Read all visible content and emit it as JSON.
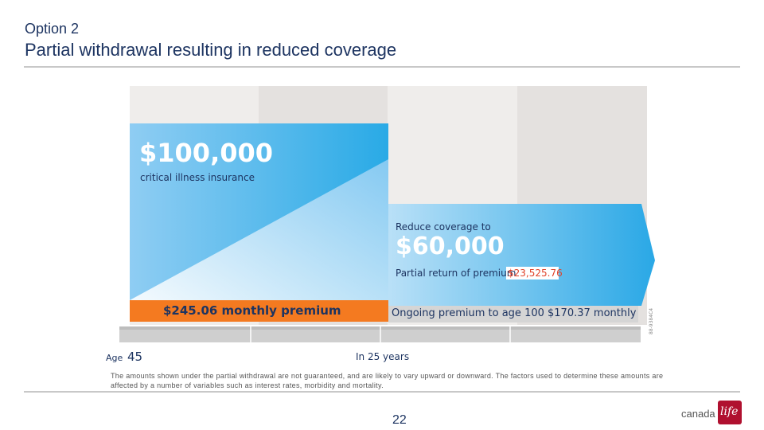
{
  "header": {
    "kicker": "Option 2",
    "title": "Partial withdrawal resulting in reduced coverage"
  },
  "diagram": {
    "initial_amount": "$100,000",
    "initial_label": "critical illness insurance",
    "initial_premium": "$245.06 monthly premium",
    "reduce_label": "Reduce coverage to",
    "reduced_amount": "$60,000",
    "partial_return_label": "Partial return of premium",
    "partial_return_value": "$23,525.76",
    "ongoing_premium": "Ongoing premium to age 100 $170.37 monthly",
    "age_label": "Age",
    "age_value": "45",
    "later_label": "In 25 years",
    "side_code": "88-9384C4"
  },
  "footer": {
    "disclaimer": "The amounts shown under the partial withdrawal are not guaranteed, and are likely to vary upward or downward.  The factors used to determine these amounts are affected by a number of variables such as interest rates, morbidity and mortality.",
    "page_number": "22",
    "logo_text": "canada",
    "logo_mark": "life"
  },
  "colors": {
    "blue_light": "#cfe8f8",
    "blue_dark": "#2aa8e6",
    "orange": "#f47a20",
    "grey_panel": "#e4e1df",
    "grey_panel_light": "#efedeb",
    "brand_red": "#b0102f"
  }
}
